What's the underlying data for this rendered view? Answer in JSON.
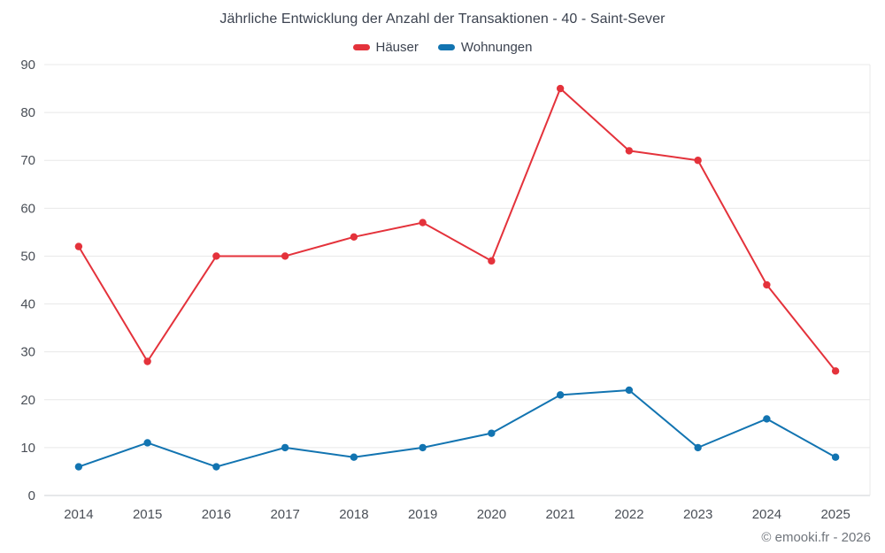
{
  "chart_data": {
    "type": "line",
    "title": "Jährliche Entwicklung der Anzahl der Transaktionen - 40 - Saint-Sever",
    "categories": [
      "2014",
      "2015",
      "2016",
      "2017",
      "2018",
      "2019",
      "2020",
      "2021",
      "2022",
      "2023",
      "2024",
      "2025"
    ],
    "series": [
      {
        "name": "Häuser",
        "color": "#e4323b",
        "values": [
          52,
          28,
          50,
          50,
          54,
          57,
          49,
          85,
          72,
          70,
          44,
          26
        ]
      },
      {
        "name": "Wohnungen",
        "color": "#1274b1",
        "values": [
          6,
          11,
          6,
          10,
          8,
          10,
          13,
          21,
          22,
          10,
          16,
          8
        ]
      }
    ],
    "ylim": [
      0,
      90
    ],
    "ytick_step": 10,
    "grid": "horizontal",
    "legend_position": "top",
    "marker": "circle",
    "text_color": "#4a4f57",
    "grid_color": "#e8e8e8",
    "axis_color": "#cdd1d6"
  },
  "footer": {
    "credit": "© emooki.fr - 2026"
  }
}
